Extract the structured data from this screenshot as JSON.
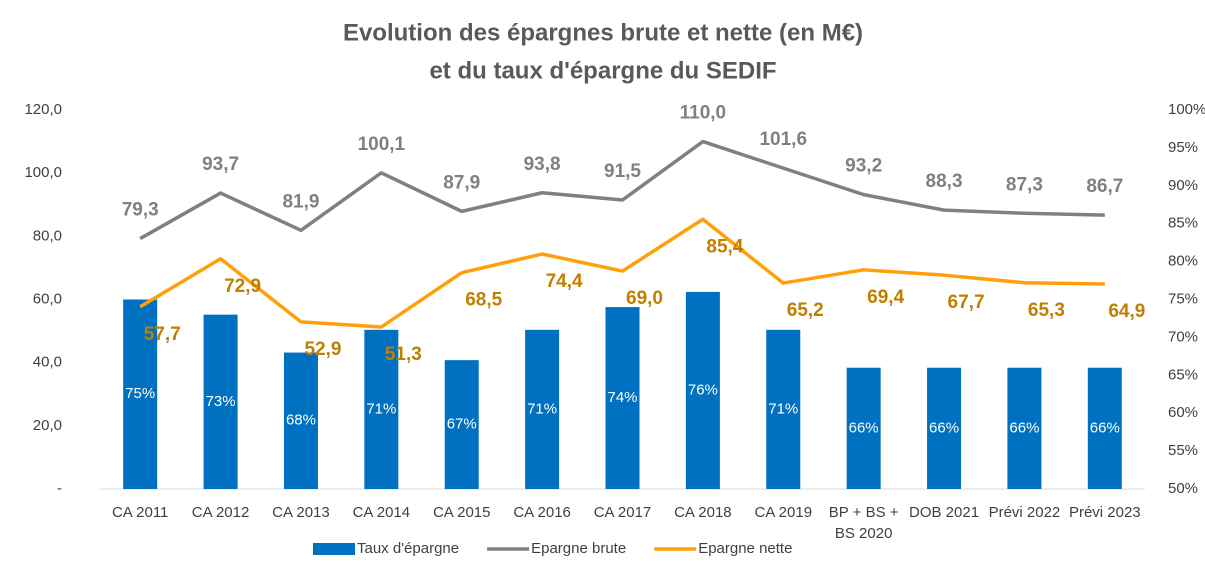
{
  "chart_data": {
    "type": "bar-line",
    "title": [
      "Evolution des épargnes brute et nette  (en M€)",
      "et du taux d'épargne du SEDIF"
    ],
    "categories": [
      "CA 2011",
      "CA 2012",
      "CA 2013",
      "CA 2014",
      "CA 2015",
      "CA 2016",
      "CA 2017",
      "CA 2018",
      "CA 2019",
      "BP + BS + BS 2020",
      "DOB 2021",
      "Prévi 2022",
      "Prévi 2023"
    ],
    "ylim": [
      0,
      120
    ],
    "yticks": [
      {
        "value": 0,
        "label": "-"
      },
      {
        "value": 20,
        "label": "20,0"
      },
      {
        "value": 40,
        "label": "40,0"
      },
      {
        "value": 60,
        "label": "60,0"
      },
      {
        "value": 80,
        "label": "80,0"
      },
      {
        "value": 100,
        "label": "100,0"
      },
      {
        "value": 120,
        "label": "120,0"
      }
    ],
    "y2lim": [
      50,
      100
    ],
    "y2ticks": [
      {
        "value": 50,
        "label": "50%"
      },
      {
        "value": 55,
        "label": "55%"
      },
      {
        "value": 60,
        "label": "60%"
      },
      {
        "value": 65,
        "label": "65%"
      },
      {
        "value": 70,
        "label": "70%"
      },
      {
        "value": 75,
        "label": "75%"
      },
      {
        "value": 80,
        "label": "80%"
      },
      {
        "value": 85,
        "label": "85%"
      },
      {
        "value": 90,
        "label": "90%"
      },
      {
        "value": 95,
        "label": "95%"
      },
      {
        "value": 100,
        "label": "100%"
      }
    ],
    "series": [
      {
        "name": "Taux d'épargne",
        "kind": "bar",
        "axis": "y2",
        "color": "#0070c0",
        "label_color": "#ffffff",
        "values": [
          75,
          73,
          68,
          71,
          67,
          71,
          74,
          76,
          71,
          66,
          66,
          66,
          66
        ],
        "value_labels": [
          "75%",
          "73%",
          "68%",
          "71%",
          "67%",
          "71%",
          "74%",
          "76%",
          "71%",
          "66%",
          "66%",
          "66%",
          "66%"
        ]
      },
      {
        "name": "Epargne brute",
        "kind": "line",
        "color": "#808080",
        "label_color": "#808080",
        "values": [
          79.3,
          93.7,
          81.9,
          100.1,
          87.9,
          93.8,
          91.5,
          110.0,
          101.6,
          93.2,
          88.3,
          87.3,
          86.7
        ],
        "value_labels": [
          "79,3",
          "93,7",
          "81,9",
          "100,1",
          "87,9",
          "93,8",
          "91,5",
          "110,0",
          "101,6",
          "93,2",
          "88,3",
          "87,3",
          "86,7"
        ]
      },
      {
        "name": "Epargne nette",
        "kind": "line",
        "color": "#ffa00a",
        "label_color": "#c07f00",
        "values": [
          57.7,
          72.9,
          52.9,
          51.3,
          68.5,
          74.4,
          69.0,
          85.4,
          65.2,
          69.4,
          67.7,
          65.3,
          64.9
        ],
        "value_labels": [
          "57,7",
          "72,9",
          "52,9",
          "51,3",
          "68,5",
          "74,4",
          "69,0",
          "85,4",
          "65,2",
          "69,4",
          "67,7",
          "65,3",
          "64,9"
        ]
      }
    ]
  }
}
